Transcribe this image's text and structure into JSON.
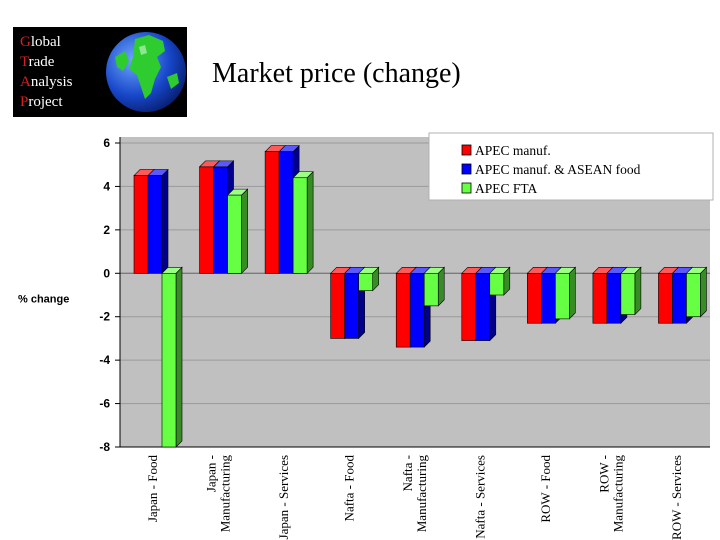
{
  "logo": {
    "lines": [
      {
        "initial": "G",
        "rest": "lobal"
      },
      {
        "initial": "T",
        "rest": "rade"
      },
      {
        "initial": "A",
        "rest": "nalysis"
      },
      {
        "initial": "P",
        "rest": "roject"
      }
    ],
    "icon": "globe-icon"
  },
  "page_title": "Market price (change)",
  "colors": {
    "series": [
      "#ff0000",
      "#0000ff",
      "#66ff44"
    ],
    "plot_bg": "#c0c0c0"
  },
  "chart_data": {
    "type": "bar",
    "ylabel": "% change",
    "ylim": [
      -8,
      6
    ],
    "yticks": [
      6,
      4,
      2,
      0,
      -2,
      -4,
      -6,
      -8
    ],
    "grid": true,
    "legend_position": "top-right",
    "categories": [
      [
        "Japan - Food"
      ],
      [
        "Japan -",
        "Manufacturing"
      ],
      [
        "Japan - Services"
      ],
      [
        "Nafta - Food"
      ],
      [
        "Nafta -",
        "Manufacturing"
      ],
      [
        "Nafta - Services"
      ],
      [
        "ROW - Food"
      ],
      [
        "ROW -",
        "Manufacturing"
      ],
      [
        "ROW - Services"
      ]
    ],
    "series": [
      {
        "name": "APEC manuf.",
        "values": [
          4.5,
          4.9,
          5.6,
          -3.0,
          -3.4,
          -3.1,
          -2.3,
          -2.3,
          -2.3
        ]
      },
      {
        "name": "APEC manuf. & ASEAN food",
        "values": [
          4.5,
          4.9,
          5.6,
          -3.0,
          -3.4,
          -3.1,
          -2.3,
          -2.3,
          -2.3
        ]
      },
      {
        "name": "APEC FTA",
        "values": [
          -8.0,
          3.6,
          4.4,
          -0.8,
          -1.5,
          -1.0,
          -2.1,
          -1.9,
          -2.0
        ]
      }
    ]
  }
}
